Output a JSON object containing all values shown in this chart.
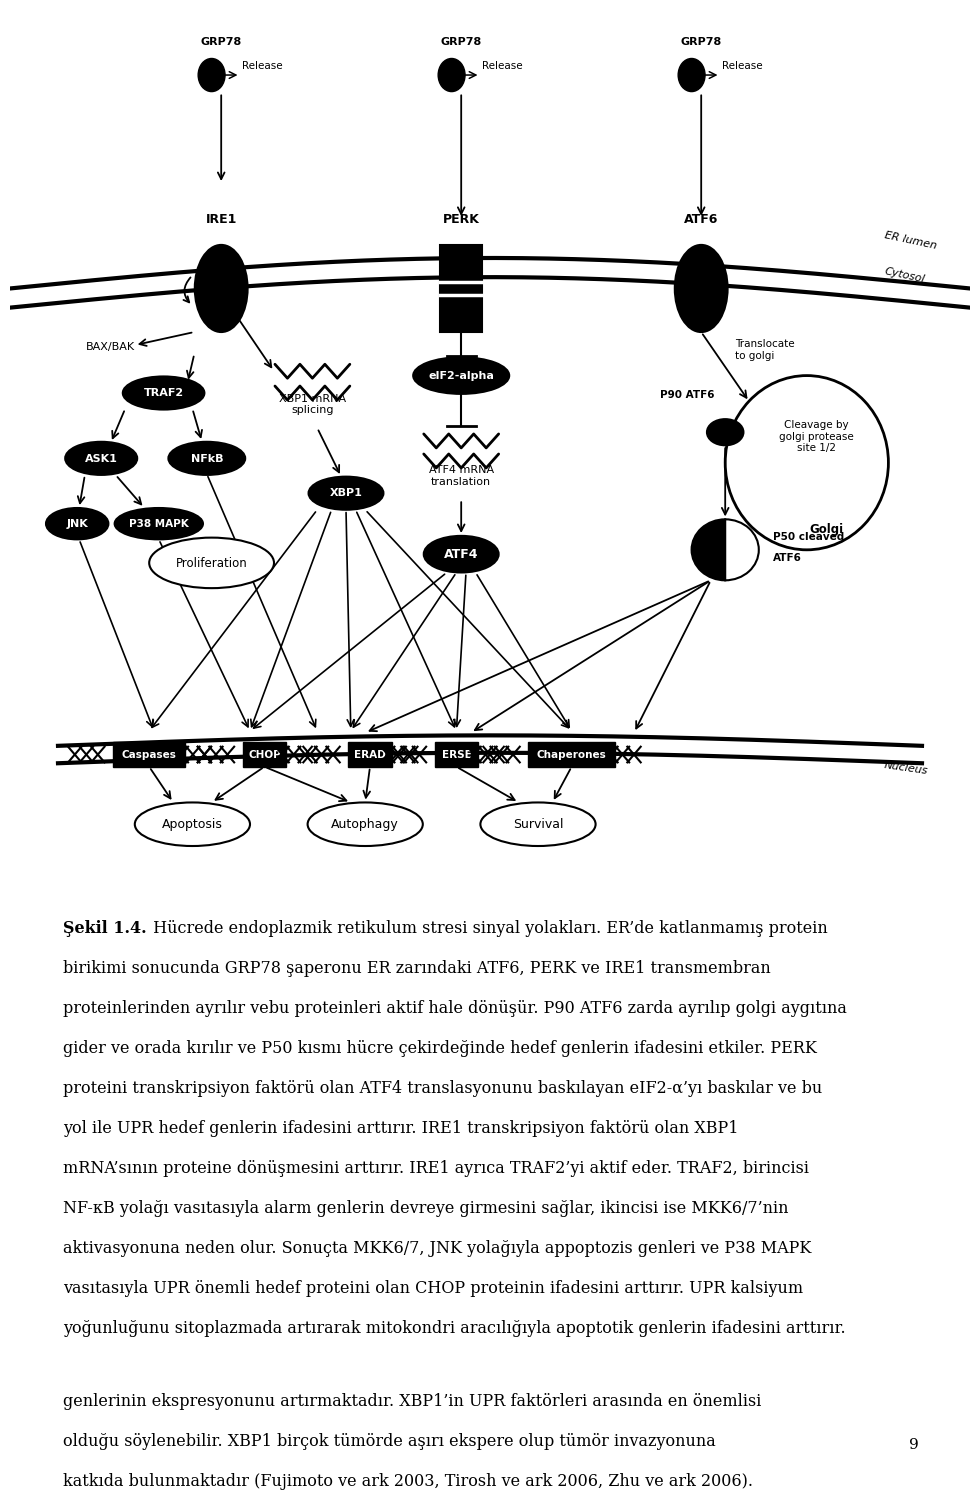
{
  "bg_color": "#ffffff",
  "fig_width": 9.6,
  "fig_height": 15.02,
  "caption_bold": "Şekil 1.4.",
  "caption_rest": " Hücrede endoplazmik retikulum stresi sinyal yolakları. ER’de katlanmamış protein birikimi sonucunda GRP78 şaperonu ER zarındaki ATF6, PERK ve IRE1 transmembran proteinlerinden ayrılır vebu proteinleri aktif hale dönüşür. P90 ATF6 zarda ayrılıp golgi aygıtına gider ve orada kırılır ve P50 kısmı hücre çekirdеğinde hedef genlerin ifadesini etkiler. PERK proteini transkripsiyon faktörü olan ATF4 translasyonunu baskılayan eIF2-α’yı baskılar ve bu yol ile UPR hedef genlerin ifadesini arttırır. IRE1 transkripsiyon faktörü olan XBP1 mRNA’sının proteine dönüşmesini arttırır. IRE1 ayrıca TRAF2’yi aktif eder. TRAF2, birincisi NF-κB yolağı vasıtasıyla alarm genlerin devreye girmesini sağlar, ikincisi ise MKK6/7’nin aktivasyonuna neden olur. Sonuçta MKK6/7, JNK yolağıyla appoptozis genleri ve P38 MAPK vasıtasıyla UPR önemli hedef proteini olan CHOP proteinin ifadesini arttırır. UPR kalsiyum yoğunluğunu sitoplazmada artırarak mitokondri aracılığıyla apoptotik genlerin ifadesini arttırır.",
  "caption2": "genlerinin ekspresyonunu artırmaktadır. XBP1’in UPR faktörleri arasında en önemlisi olduğu söylenebilir. XBP1 birçok tümörde aşırı ekspere olup tümör invazyonuna katkıda bulunmaktadır (Fujimoto ve ark 2003, Tirosh ve ark 2006, Zhu ve ark 2006).",
  "page_number": "9"
}
